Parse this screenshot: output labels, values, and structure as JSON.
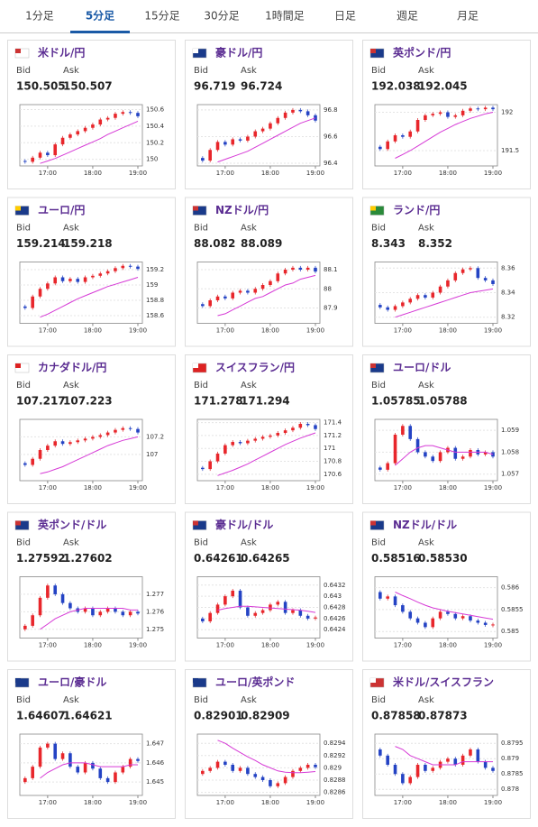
{
  "tabs": [
    "1分足",
    "5分足",
    "15分足",
    "30分足",
    "1時間足",
    "日足",
    "週足",
    "月足"
  ],
  "active_tab": 1,
  "labels": {
    "bid": "Bid",
    "ask": "Ask"
  },
  "x_axis": {
    "xlim": [
      0.3,
      16.6
    ],
    "xticks": [
      {
        "value": 4,
        "label": "17:00"
      },
      {
        "value": 10,
        "label": "18:00"
      },
      {
        "value": 16,
        "label": "19:00"
      }
    ]
  },
  "panels": [
    {
      "name": "米ドル/円",
      "bid": "150.505",
      "ask": "150.507",
      "chart": {
        "type": "candlestick",
        "ylim": [
          149.92,
          150.66
        ],
        "yticks": [
          150,
          150.2,
          150.4,
          150.6
        ],
        "closes": [
          149.98,
          149.97,
          150.02,
          150.08,
          150.05,
          150.18,
          150.26,
          150.3,
          150.34,
          150.38,
          150.42,
          150.48,
          150.5,
          150.55,
          150.57,
          150.56,
          150.52
        ],
        "ma": [
          null,
          null,
          null,
          149.95,
          149.98,
          150.01,
          150.05,
          150.09,
          150.13,
          150.17,
          150.21,
          150.25,
          150.3,
          150.34,
          150.38,
          150.42,
          150.46
        ]
      }
    },
    {
      "name": "豪ドル/円",
      "bid": "96.719",
      "ask": "96.724",
      "chart": {
        "type": "candlestick",
        "ylim": [
          96.38,
          96.84
        ],
        "yticks": [
          96.4,
          96.6,
          96.8
        ],
        "closes": [
          96.44,
          96.42,
          96.5,
          96.56,
          96.54,
          96.58,
          96.57,
          96.6,
          96.64,
          96.66,
          96.7,
          96.74,
          96.78,
          96.8,
          96.79,
          96.76,
          96.72
        ],
        "ma": [
          null,
          null,
          null,
          96.41,
          96.43,
          96.45,
          96.47,
          96.49,
          96.52,
          96.55,
          96.58,
          96.61,
          96.64,
          96.67,
          96.7,
          96.72,
          96.74
        ]
      }
    },
    {
      "name": "英ポンド/円",
      "bid": "192.038",
      "ask": "192.045",
      "chart": {
        "type": "candlestick",
        "ylim": [
          191.3,
          192.1
        ],
        "yticks": [
          191.5,
          192
        ],
        "closes": [
          191.55,
          191.52,
          191.62,
          191.7,
          191.68,
          191.75,
          191.9,
          191.96,
          191.98,
          192,
          191.94,
          191.96,
          192.02,
          192.05,
          192.04,
          192.06,
          192.04
        ],
        "ma": [
          null,
          null,
          null,
          191.4,
          191.45,
          191.5,
          191.56,
          191.62,
          191.68,
          191.74,
          191.79,
          191.84,
          191.88,
          191.92,
          191.95,
          191.98,
          192
        ]
      }
    },
    {
      "name": "ユーロ/円",
      "bid": "159.214",
      "ask": "159.218",
      "chart": {
        "type": "candlestick",
        "ylim": [
          158.5,
          159.3
        ],
        "yticks": [
          158.6,
          158.8,
          159,
          159.2
        ],
        "closes": [
          158.72,
          158.7,
          158.85,
          158.95,
          159.02,
          159.1,
          159.05,
          159.08,
          159.04,
          159.1,
          159.12,
          159.15,
          159.18,
          159.22,
          159.25,
          159.24,
          159.21
        ],
        "ma": [
          null,
          null,
          null,
          158.58,
          158.62,
          158.67,
          158.72,
          158.77,
          158.82,
          158.86,
          158.9,
          158.94,
          158.98,
          159.01,
          159.04,
          159.07,
          159.1
        ]
      }
    },
    {
      "name": "NZドル/円",
      "bid": "88.082",
      "ask": "88.089",
      "chart": {
        "type": "candlestick",
        "ylim": [
          87.82,
          88.14
        ],
        "yticks": [
          87.9,
          88,
          88.1
        ],
        "closes": [
          87.92,
          87.91,
          87.94,
          87.96,
          87.95,
          87.98,
          87.99,
          87.98,
          88,
          88.02,
          88.04,
          88.08,
          88.1,
          88.11,
          88.1,
          88.11,
          88.09
        ],
        "ma": [
          null,
          null,
          null,
          87.86,
          87.87,
          87.89,
          87.91,
          87.93,
          87.95,
          87.96,
          87.98,
          88,
          88.02,
          88.03,
          88.05,
          88.06,
          88.07
        ]
      }
    },
    {
      "name": "ランド/円",
      "bid": "8.343",
      "ask": "8.352",
      "chart": {
        "type": "candlestick",
        "ylim": [
          8.315,
          8.365
        ],
        "yticks": [
          8.32,
          8.34,
          8.36
        ],
        "closes": [
          8.33,
          8.328,
          8.326,
          8.329,
          8.332,
          8.335,
          8.338,
          8.336,
          8.34,
          8.345,
          8.35,
          8.356,
          8.359,
          8.36,
          8.352,
          8.35,
          8.347
        ],
        "ma": [
          null,
          null,
          null,
          8.32,
          8.322,
          8.324,
          8.326,
          8.328,
          8.33,
          8.332,
          8.334,
          8.336,
          8.338,
          8.34,
          8.341,
          8.342,
          8.343
        ]
      }
    },
    {
      "name": "カナダドル/円",
      "bid": "107.217",
      "ask": "107.223",
      "chart": {
        "type": "candlestick",
        "ylim": [
          106.7,
          107.4
        ],
        "yticks": [
          107,
          107.2
        ],
        "closes": [
          106.9,
          106.88,
          106.95,
          107.05,
          107.1,
          107.15,
          107.12,
          107.14,
          107.16,
          107.18,
          107.2,
          107.22,
          107.25,
          107.28,
          107.3,
          107.29,
          107.25
        ],
        "ma": [
          null,
          null,
          null,
          106.78,
          106.8,
          106.83,
          106.86,
          106.9,
          106.94,
          106.98,
          107.02,
          107.06,
          107.1,
          107.13,
          107.16,
          107.18,
          107.2
        ]
      }
    },
    {
      "name": "スイスフラン/円",
      "bid": "171.278",
      "ask": "171.294",
      "chart": {
        "type": "candlestick",
        "ylim": [
          170.5,
          171.45
        ],
        "yticks": [
          170.6,
          170.8,
          171,
          171.2,
          171.4
        ],
        "closes": [
          170.7,
          170.68,
          170.8,
          170.92,
          171.05,
          171.1,
          171.08,
          171.12,
          171.15,
          171.18,
          171.2,
          171.24,
          171.28,
          171.32,
          171.38,
          171.36,
          171.3
        ],
        "ma": [
          null,
          null,
          null,
          170.58,
          170.62,
          170.66,
          170.71,
          170.76,
          170.82,
          170.88,
          170.94,
          171,
          171.06,
          171.11,
          171.16,
          171.2,
          171.24
        ]
      }
    },
    {
      "name": "ユーロ/ドル",
      "bid": "1.05785",
      "ask": "1.05788",
      "chart": {
        "type": "candlestick",
        "ylim": [
          1.0567,
          1.0595
        ],
        "yticks": [
          1.057,
          1.058,
          1.059
        ],
        "closes": [
          1.0573,
          1.0572,
          1.0575,
          1.0588,
          1.0592,
          1.0586,
          1.058,
          1.0578,
          1.0576,
          1.058,
          1.0582,
          1.0577,
          1.0578,
          1.0581,
          1.0579,
          1.058,
          1.0578
        ],
        "ma": [
          null,
          null,
          null,
          1.0574,
          1.0577,
          1.058,
          1.0582,
          1.0583,
          1.0583,
          1.0582,
          1.0581,
          1.058,
          1.058,
          1.058,
          1.058,
          1.058,
          1.0579
        ]
      }
    },
    {
      "name": "英ポンド/ドル",
      "bid": "1.27592",
      "ask": "1.27602",
      "chart": {
        "type": "candlestick",
        "ylim": [
          1.2745,
          1.278
        ],
        "yticks": [
          1.275,
          1.276,
          1.277
        ],
        "closes": [
          1.275,
          1.2752,
          1.2758,
          1.2768,
          1.2775,
          1.277,
          1.2765,
          1.2762,
          1.276,
          1.2762,
          1.2758,
          1.276,
          1.2762,
          1.276,
          1.2758,
          1.276,
          1.2759
        ],
        "ma": [
          null,
          null,
          null,
          1.275,
          1.2753,
          1.2756,
          1.2758,
          1.276,
          1.2761,
          1.2762,
          1.2762,
          1.2762,
          1.2762,
          1.2762,
          1.2762,
          1.2761,
          1.2761
        ]
      }
    },
    {
      "name": "豪ドル/ドル",
      "bid": "0.64261",
      "ask": "0.64265",
      "chart": {
        "type": "candlestick",
        "ylim": [
          0.64225,
          0.64335
        ],
        "yticks": [
          0.6424,
          0.6426,
          0.6428,
          0.643,
          0.6432
        ],
        "closes": [
          0.6426,
          0.64255,
          0.6427,
          0.64285,
          0.643,
          0.6431,
          0.6428,
          0.64265,
          0.6427,
          0.64275,
          0.64285,
          0.6429,
          0.6427,
          0.64275,
          0.64265,
          0.6426,
          0.64262
        ],
        "ma": [
          null,
          null,
          null,
          0.64275,
          0.64278,
          0.6428,
          0.64282,
          0.64282,
          0.64281,
          0.6428,
          0.64279,
          0.64278,
          0.64277,
          0.64276,
          0.64275,
          0.64273,
          0.64271
        ]
      }
    },
    {
      "name": "NZドル/ドル",
      "bid": "0.58516",
      "ask": "0.58530",
      "chart": {
        "type": "candlestick",
        "ylim": [
          0.58485,
          0.58625
        ],
        "yticks": [
          0.585,
          0.5855,
          0.586
        ],
        "closes": [
          0.5859,
          0.58575,
          0.5858,
          0.5856,
          0.58545,
          0.5853,
          0.5852,
          0.5851,
          0.5853,
          0.58545,
          0.5854,
          0.5853,
          0.58535,
          0.58525,
          0.5852,
          0.58515,
          0.58516
        ],
        "ma": [
          null,
          null,
          null,
          0.5859,
          0.58582,
          0.58575,
          0.58567,
          0.5856,
          0.58554,
          0.5855,
          0.58546,
          0.58543,
          0.5854,
          0.58537,
          0.58534,
          0.58531,
          0.58528
        ]
      }
    },
    {
      "name": "ユーロ/豪ドル",
      "bid": "1.64607",
      "ask": "1.64621",
      "chart": {
        "type": "candlestick",
        "ylim": [
          1.6443,
          1.6475
        ],
        "yticks": [
          1.645,
          1.646,
          1.647
        ],
        "closes": [
          1.645,
          1.6452,
          1.6458,
          1.6468,
          1.647,
          1.6462,
          1.6465,
          1.6458,
          1.6455,
          1.646,
          1.6457,
          1.6452,
          1.645,
          1.6455,
          1.6458,
          1.6462,
          1.6461
        ],
        "ma": [
          null,
          null,
          null,
          1.6452,
          1.6455,
          1.6457,
          1.6459,
          1.646,
          1.646,
          1.646,
          1.6459,
          1.6458,
          1.6458,
          1.6458,
          1.6458,
          1.6459,
          1.6459
        ]
      }
    },
    {
      "name": "ユーロ/英ポンド",
      "bid": "0.82901",
      "ask": "0.82909",
      "chart": {
        "type": "candlestick",
        "ylim": [
          0.82855,
          0.82955
        ],
        "yticks": [
          0.8286,
          0.8288,
          0.829,
          0.8292,
          0.8294
        ],
        "closes": [
          0.8289,
          0.82895,
          0.829,
          0.8291,
          0.82905,
          0.82895,
          0.829,
          0.8289,
          0.82885,
          0.8288,
          0.8287,
          0.82875,
          0.82885,
          0.82895,
          0.829,
          0.82905,
          0.82901
        ],
        "ma": [
          null,
          null,
          null,
          0.82945,
          0.8294,
          0.82932,
          0.82925,
          0.82918,
          0.82912,
          0.82905,
          0.829,
          0.82895,
          0.82893,
          0.82892,
          0.82892,
          0.82893,
          0.82894
        ]
      }
    },
    {
      "name": "米ドル/スイスフラン",
      "bid": "0.87858",
      "ask": "0.87873",
      "chart": {
        "type": "candlestick",
        "ylim": [
          0.8778,
          0.8798
        ],
        "yticks": [
          0.878,
          0.8785,
          0.879,
          0.8795
        ],
        "closes": [
          0.8793,
          0.8791,
          0.8788,
          0.8785,
          0.8782,
          0.8784,
          0.8788,
          0.8786,
          0.8787,
          0.8789,
          0.879,
          0.8788,
          0.8791,
          0.8793,
          0.8789,
          0.8787,
          0.8786
        ],
        "ma": [
          null,
          null,
          null,
          0.8794,
          0.8793,
          0.8791,
          0.879,
          0.8789,
          0.8788,
          0.8788,
          0.8788,
          0.8788,
          0.8789,
          0.8789,
          0.8789,
          0.8789,
          0.8789
        ]
      }
    }
  ]
}
